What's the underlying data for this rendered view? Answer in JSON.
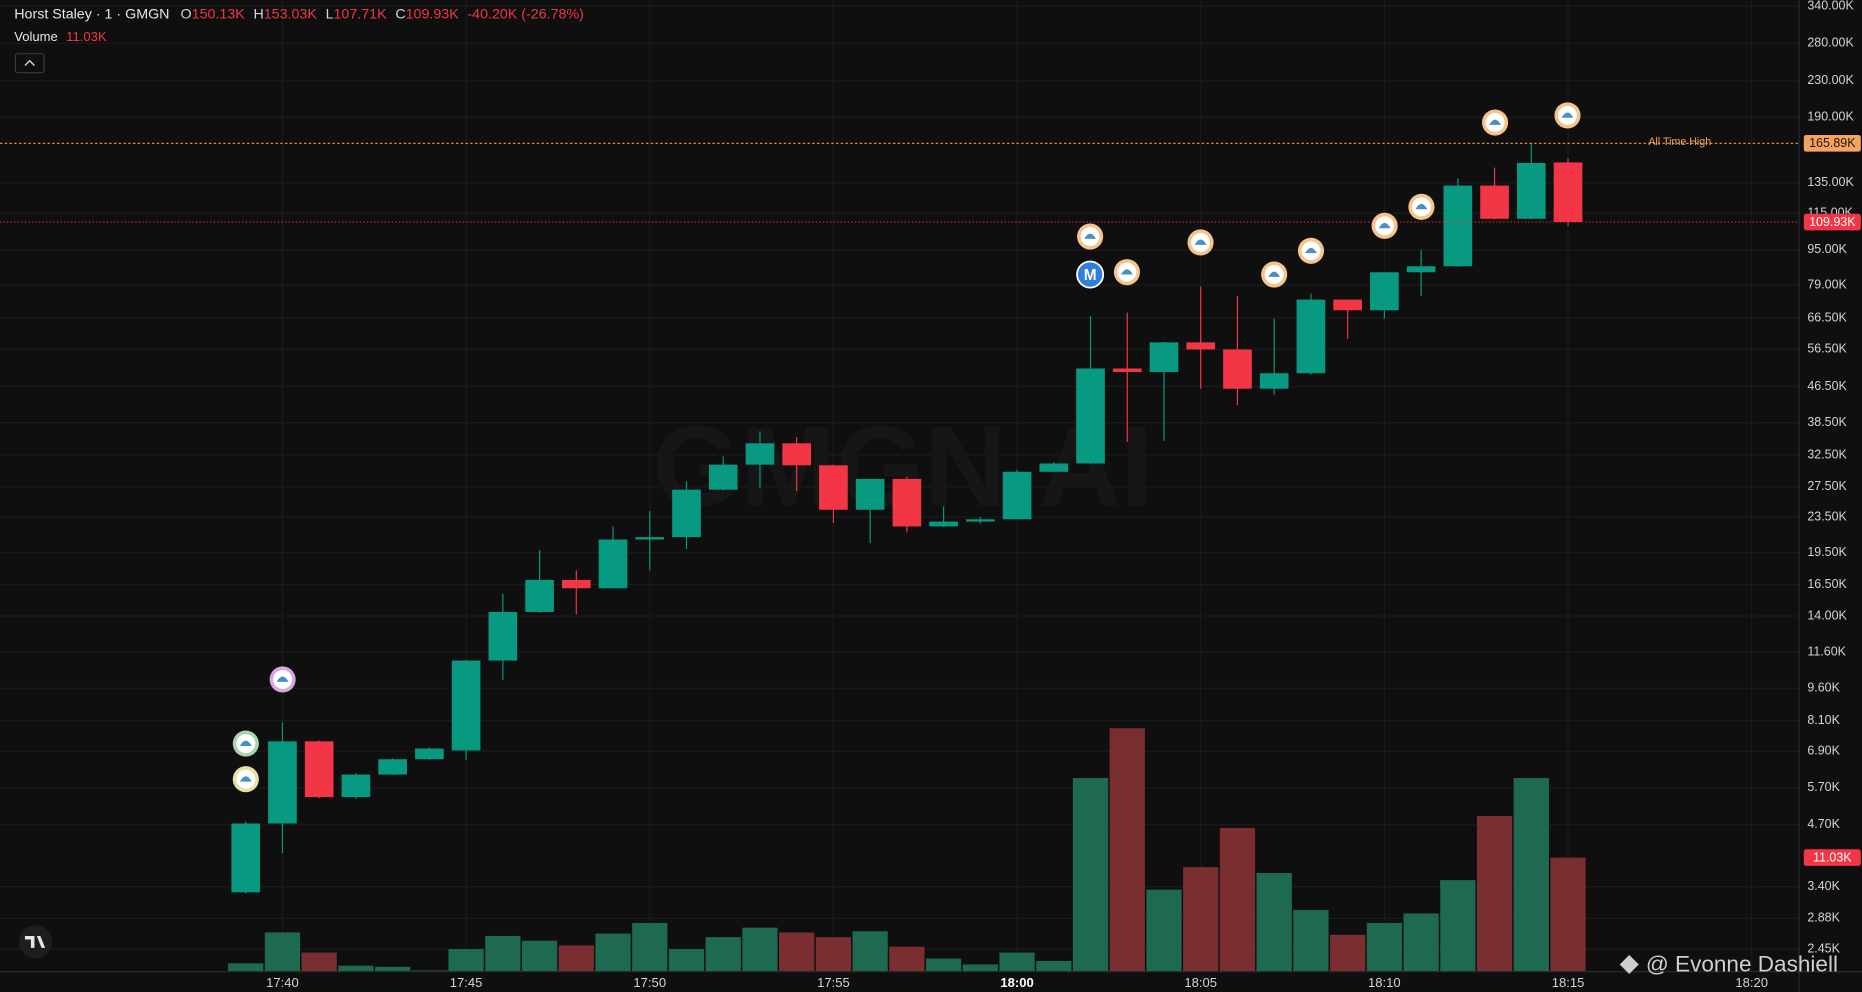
{
  "chart_data": {
    "type": "candlestick",
    "title": "Horst Staley · 1 · GMGN",
    "header": [
      {
        "key": "O",
        "value": 150130,
        "label": "150.13K"
      },
      {
        "key": "H",
        "value": 153030,
        "label": "153.03K"
      },
      {
        "key": "L",
        "value": 107710,
        "label": "107.71K"
      },
      {
        "key": "C",
        "value": 109930,
        "label": "109.93K"
      }
    ],
    "change": "-40.20K (-26.78%)",
    "x": [
      1059,
      1060,
      1061,
      1062,
      1063,
      1064,
      1065,
      1066,
      1067,
      1068,
      1069,
      1070,
      1071,
      1072,
      1073,
      1074,
      1075,
      1076,
      1077,
      1078,
      1079,
      1080,
      1081,
      1082,
      1083,
      1084,
      1085,
      1086,
      1087,
      1088,
      1089,
      1090,
      1091,
      1092,
      1093,
      1094,
      1095
    ],
    "open": [
      3300,
      4730,
      7270,
      5430,
      6110,
      6620,
      6930,
      11090,
      14300,
      16910,
      16190,
      20890,
      21150,
      27110,
      30900,
      34550,
      30800,
      24410,
      28680,
      22370,
      22940,
      23220,
      29770,
      31090,
      51100,
      50150,
      58580,
      56440,
      45970,
      49840,
      73270,
      69290,
      84520,
      87210,
      133000,
      111800,
      150130
    ],
    "high": [
      4780,
      8030,
      7300,
      6150,
      6650,
      7030,
      11120,
      15710,
      19750,
      17780,
      22370,
      24250,
      28330,
      32260,
      36780,
      35700,
      30900,
      28700,
      29000,
      24850,
      23500,
      30100,
      31300,
      67190,
      68440,
      58700,
      78470,
      74660,
      66300,
      75580,
      73300,
      84600,
      95100,
      138100,
      146100,
      165890,
      153030
    ],
    "low": [
      3280,
      4050,
      5400,
      5380,
      6100,
      6600,
      6600,
      10030,
      14250,
      14120,
      16150,
      17780,
      19880,
      27000,
      27300,
      26900,
      22780,
      20500,
      21680,
      22300,
      22700,
      23200,
      29700,
      31000,
      34780,
      35000,
      45970,
      42160,
      44570,
      49500,
      59670,
      66300,
      74660,
      87000,
      111500,
      111500,
      107710
    ],
    "close": [
      4730,
      7270,
      5430,
      6110,
      6620,
      7000,
      11090,
      14300,
      16910,
      16190,
      20890,
      21150,
      27110,
      30900,
      34550,
      30800,
      24410,
      28680,
      22370,
      22940,
      23220,
      29770,
      31090,
      51100,
      50150,
      58580,
      56440,
      45970,
      49840,
      73270,
      69290,
      84520,
      87210,
      133000,
      111800,
      149700,
      109930
    ],
    "volume": {
      "name": "Volume",
      "values": [
        800,
        3790,
        1840,
        570,
        460,
        110,
        2180,
        3450,
        2990,
        2530,
        3680,
        4710,
        2180,
        3330,
        4250,
        3790,
        3330,
        3910,
        2410,
        1260,
        690,
        1840,
        1030,
        18730,
        23550,
        7930,
        10110,
        13900,
        9540,
        5970,
        3560,
        4710,
        5630,
        8850,
        15050,
        18730,
        11030
      ],
      "last_label": "11.03K",
      "ylim": [
        0,
        94000
      ],
      "up_color": "#1d6a50",
      "down_color": "#7b2e30"
    },
    "up_color": "#089981",
    "down_color": "#f23645",
    "log_scale": true,
    "grid": true,
    "ylim": [
      2180,
      350700
    ],
    "yticks": [
      {
        "value": 340000,
        "label": "340.00K"
      },
      {
        "value": 280000,
        "label": "280.00K"
      },
      {
        "value": 230000,
        "label": "230.00K"
      },
      {
        "value": 190000,
        "label": "190.00K"
      },
      {
        "value": 135000,
        "label": "135.00K"
      },
      {
        "value": 115000,
        "label": "115.00K"
      },
      {
        "value": 95000,
        "label": "95.00K"
      },
      {
        "value": 79000,
        "label": "79.00K"
      },
      {
        "value": 66500,
        "label": "66.50K"
      },
      {
        "value": 56500,
        "label": "56.50K"
      },
      {
        "value": 46500,
        "label": "46.50K"
      },
      {
        "value": 38500,
        "label": "38.50K"
      },
      {
        "value": 32500,
        "label": "32.50K"
      },
      {
        "value": 27500,
        "label": "27.50K"
      },
      {
        "value": 23500,
        "label": "23.50K"
      },
      {
        "value": 19500,
        "label": "19.50K"
      },
      {
        "value": 16500,
        "label": "16.50K"
      },
      {
        "value": 14000,
        "label": "14.00K"
      },
      {
        "value": 11600,
        "label": "11.60K"
      },
      {
        "value": 9600,
        "label": "9.60K"
      },
      {
        "value": 8100,
        "label": "8.10K"
      },
      {
        "value": 6900,
        "label": "6.90K"
      },
      {
        "value": 5700,
        "label": "5.70K"
      },
      {
        "value": 4700,
        "label": "4.70K"
      },
      {
        "value": 3400,
        "label": "3.40K"
      },
      {
        "value": 2880,
        "label": "2.88K"
      },
      {
        "value": 2450,
        "label": "2.45K"
      }
    ],
    "xlim": [
      1052.31,
      1101.29
    ],
    "xticks": [
      {
        "value": 1060,
        "label": "17:40"
      },
      {
        "value": 1065,
        "label": "17:45"
      },
      {
        "value": 1070,
        "label": "17:50"
      },
      {
        "value": 1075,
        "label": "17:55"
      },
      {
        "value": 1080,
        "label": "18:00"
      },
      {
        "value": 1085,
        "label": "18:05"
      },
      {
        "value": 1090,
        "label": "18:10"
      },
      {
        "value": 1095,
        "label": "18:15"
      },
      {
        "value": 1100,
        "label": "18:20"
      }
    ],
    "all_time_high": {
      "value": 165890,
      "label": "165.89K",
      "text": "All Time High",
      "color": "#f7a35c"
    },
    "last_price": {
      "value": 109930,
      "label": "109.93K",
      "color": "#f23645"
    },
    "watermark": "GMGN.AI",
    "marker_label": "M"
  },
  "footer": {
    "author": "@ Evonne Dashiell"
  }
}
